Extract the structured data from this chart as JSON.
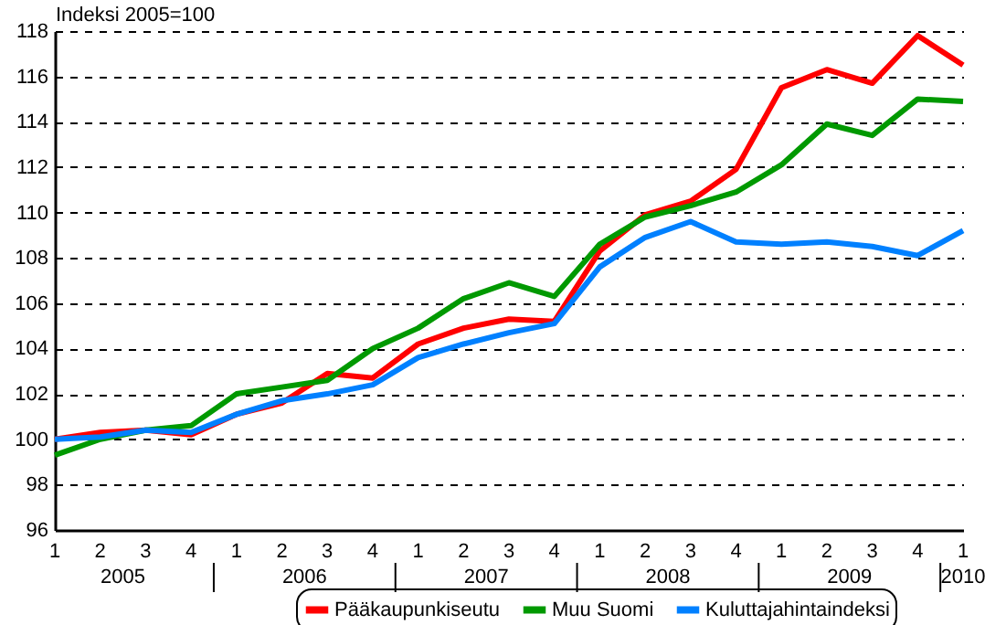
{
  "chart_data": {
    "type": "line",
    "ylabel": "Indeksi 2005=100",
    "categories": [
      "1",
      "2",
      "3",
      "4",
      "1",
      "2",
      "3",
      "4",
      "1",
      "2",
      "3",
      "4",
      "1",
      "2",
      "3",
      "4",
      "1",
      "2",
      "3",
      "4",
      "1"
    ],
    "annotations": [
      "2005",
      "2006",
      "2007",
      "2008",
      "2009",
      "2010"
    ],
    "series": [
      {
        "name": "Pääkaupunkiseutu",
        "color": "#ff0000",
        "values": [
          100.0,
          100.3,
          100.4,
          100.2,
          101.1,
          101.6,
          102.9,
          102.7,
          104.2,
          104.9,
          105.3,
          105.2,
          108.3,
          109.9,
          110.5,
          111.9,
          115.5,
          116.3,
          115.7,
          117.8,
          116.5
        ]
      },
      {
        "name": "Muu Suomi",
        "color": "#009900",
        "values": [
          99.3,
          100.0,
          100.4,
          100.6,
          102.0,
          102.3,
          102.6,
          104.0,
          104.9,
          106.2,
          106.9,
          106.3,
          108.6,
          109.8,
          110.3,
          110.9,
          112.1,
          113.9,
          113.4,
          115.0,
          114.9
        ]
      },
      {
        "name": "Kuluttajahintaindeksi",
        "color": "#0080ff",
        "values": [
          100.0,
          100.1,
          100.4,
          100.3,
          101.1,
          101.7,
          102.0,
          102.4,
          103.6,
          104.2,
          104.7,
          105.1,
          107.6,
          108.9,
          109.6,
          108.7,
          108.6,
          108.7,
          108.5,
          108.1,
          109.2
        ]
      }
    ],
    "ylim": [
      96,
      118
    ],
    "yticks": [
      96,
      98,
      100,
      102,
      104,
      106,
      108,
      110,
      112,
      114,
      116,
      118
    ],
    "grid": "y",
    "legend": "bottom",
    "marker": "none",
    "line_style": "solid"
  }
}
